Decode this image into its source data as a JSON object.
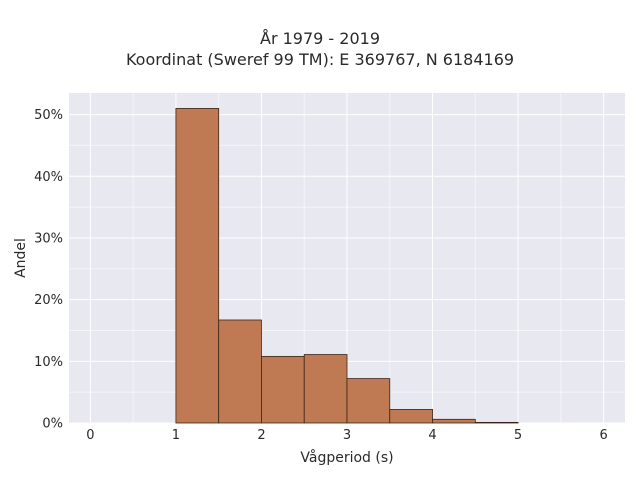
{
  "chart_data": {
    "type": "bar",
    "title": "År 1979 - 2019",
    "subtitle": "Koordinat (Sweref 99 TM): E 369767, N 6184169",
    "xlabel": "Vågperiod (s)",
    "ylabel": "Andel",
    "xlim": [
      -0.25,
      6.25
    ],
    "ylim": [
      0,
      53.5
    ],
    "x_ticks": [
      0,
      1,
      2,
      3,
      4,
      5,
      6
    ],
    "x_tick_labels": [
      "0",
      "1",
      "2",
      "3",
      "4",
      "5",
      "6"
    ],
    "y_ticks": [
      0,
      10,
      20,
      30,
      40,
      50
    ],
    "y_tick_labels": [
      "0%",
      "10%",
      "20%",
      "30%",
      "40%",
      "50%"
    ],
    "grid": true,
    "bins": [
      {
        "x0": 1.0,
        "x1": 1.5,
        "value": 51.0
      },
      {
        "x0": 1.5,
        "x1": 2.0,
        "value": 16.7
      },
      {
        "x0": 2.0,
        "x1": 2.5,
        "value": 10.8
      },
      {
        "x0": 2.5,
        "x1": 3.0,
        "value": 11.1
      },
      {
        "x0": 3.0,
        "x1": 3.5,
        "value": 7.2
      },
      {
        "x0": 3.5,
        "x1": 4.0,
        "value": 2.2
      },
      {
        "x0": 4.0,
        "x1": 4.5,
        "value": 0.6
      },
      {
        "x0": 4.5,
        "x1": 5.0,
        "value": 0.1
      }
    ],
    "colors": {
      "bar_fill": "#c07a53",
      "bar_edge": "#3a2518",
      "plot_bg": "#e8e8f0",
      "grid": "#ffffff"
    }
  }
}
